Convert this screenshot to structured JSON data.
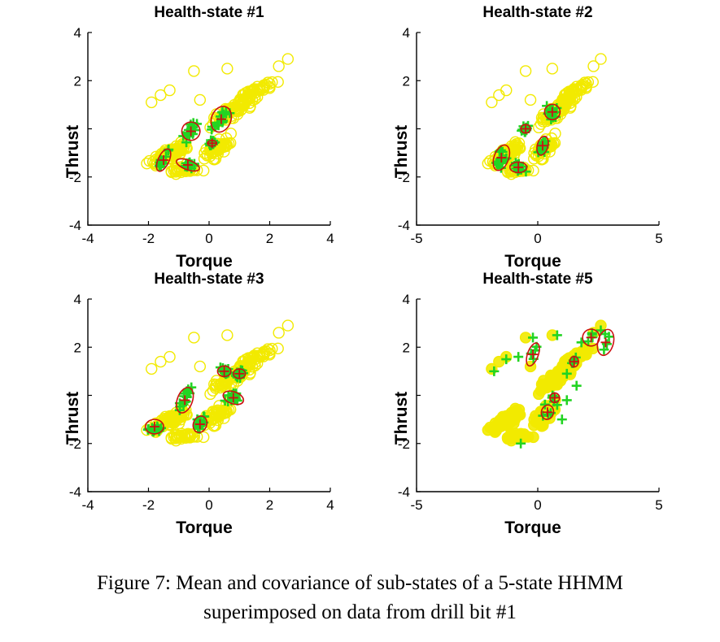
{
  "figure": {
    "caption_line1": "Figure 7: Mean and covariance of sub-states of a 5-state HHMM",
    "caption_line2": "superimposed on data from drill bit #1"
  },
  "colors": {
    "data": "#f2ea00",
    "substate_points": "#22d422",
    "ellipse": "#cc1111",
    "axis": "#000000"
  },
  "chart_data": [
    {
      "type": "scatter",
      "title": "Health-state #1",
      "xlabel": "Torque",
      "ylabel": "Thrust",
      "xlim": [
        -4,
        4
      ],
      "ylim": [
        -4,
        4
      ],
      "xticks": [
        -4,
        -2,
        0,
        2,
        4
      ],
      "yticks": [
        -4,
        -2,
        0,
        2,
        4
      ],
      "yticklabels": [
        "-4",
        "-2",
        "",
        "2",
        "4"
      ],
      "grid": false,
      "ellipses": [
        {
          "cx": -1.5,
          "cy": -1.3,
          "rx": 0.18,
          "ry": 0.5,
          "angle": 25
        },
        {
          "cx": -0.6,
          "cy": -0.1,
          "rx": 0.3,
          "ry": 0.38,
          "angle": 20
        },
        {
          "cx": -0.7,
          "cy": -1.5,
          "rx": 0.4,
          "ry": 0.2,
          "angle": 20
        },
        {
          "cx": 0.1,
          "cy": -0.6,
          "rx": 0.15,
          "ry": 0.12,
          "angle": 0
        },
        {
          "cx": 0.4,
          "cy": 0.4,
          "rx": 0.32,
          "ry": 0.55,
          "angle": 20
        }
      ]
    },
    {
      "type": "scatter",
      "title": "Health-state #2",
      "xlabel": "Torque",
      "ylabel": "Thrust",
      "xlim": [
        -5,
        5
      ],
      "ylim": [
        -4,
        4
      ],
      "xticks": [
        -5,
        0,
        5
      ],
      "yticks": [
        -4,
        -2,
        0,
        2,
        4
      ],
      "yticklabels": [
        "-4",
        "-2",
        "",
        "2",
        "4"
      ],
      "grid": false,
      "ellipses": [
        {
          "cx": -1.5,
          "cy": -1.2,
          "rx": 0.3,
          "ry": 0.55,
          "angle": 20
        },
        {
          "cx": -0.8,
          "cy": -1.6,
          "rx": 0.35,
          "ry": 0.22,
          "angle": 0
        },
        {
          "cx": -0.5,
          "cy": 0.0,
          "rx": 0.2,
          "ry": 0.18,
          "angle": 0
        },
        {
          "cx": 0.2,
          "cy": -0.7,
          "rx": 0.22,
          "ry": 0.4,
          "angle": 15
        },
        {
          "cx": 0.6,
          "cy": 0.7,
          "rx": 0.32,
          "ry": 0.32,
          "angle": 0
        }
      ]
    },
    {
      "type": "scatter",
      "title": "Health-state #3",
      "xlabel": "Torque",
      "ylabel": "Thrust",
      "xlim": [
        -4,
        4
      ],
      "ylim": [
        -4,
        4
      ],
      "xticks": [
        -4,
        -2,
        0,
        2,
        4
      ],
      "yticks": [
        -4,
        -2,
        0,
        2,
        4
      ],
      "yticklabels": [
        "-4",
        "-2",
        "",
        "2",
        "4"
      ],
      "grid": false,
      "ellipses": [
        {
          "cx": -1.8,
          "cy": -1.3,
          "rx": 0.3,
          "ry": 0.3,
          "angle": 0
        },
        {
          "cx": -0.8,
          "cy": -0.2,
          "rx": 0.25,
          "ry": 0.55,
          "angle": 20
        },
        {
          "cx": -0.3,
          "cy": -1.2,
          "rx": 0.22,
          "ry": 0.35,
          "angle": 20
        },
        {
          "cx": 0.5,
          "cy": 1.0,
          "rx": 0.22,
          "ry": 0.22,
          "angle": 0
        },
        {
          "cx": 0.8,
          "cy": -0.1,
          "rx": 0.35,
          "ry": 0.25,
          "angle": 20
        },
        {
          "cx": 1.0,
          "cy": 0.9,
          "rx": 0.2,
          "ry": 0.2,
          "angle": 0
        }
      ]
    },
    {
      "type": "scatter",
      "title": "Health-state #5",
      "xlabel": "Torque",
      "ylabel": "Thrust",
      "xlim": [
        -5,
        5
      ],
      "ylim": [
        -4,
        4
      ],
      "xticks": [
        -5,
        0,
        5
      ],
      "yticks": [
        -4,
        -2,
        0,
        2,
        4
      ],
      "yticklabels": [
        "-4",
        "-2",
        "",
        "2",
        "4"
      ],
      "grid": false,
      "ellipses": [
        {
          "cx": -0.2,
          "cy": 1.7,
          "rx": 0.22,
          "ry": 0.5,
          "angle": 20
        },
        {
          "cx": 1.5,
          "cy": 1.4,
          "rx": 0.18,
          "ry": 0.22,
          "angle": 0
        },
        {
          "cx": 0.7,
          "cy": -0.1,
          "rx": 0.2,
          "ry": 0.2,
          "angle": 0
        },
        {
          "cx": 0.4,
          "cy": -0.7,
          "rx": 0.25,
          "ry": 0.3,
          "angle": 15
        },
        {
          "cx": 2.2,
          "cy": 2.4,
          "rx": 0.35,
          "ry": 0.35,
          "angle": 0
        },
        {
          "cx": 2.8,
          "cy": 2.2,
          "rx": 0.32,
          "ry": 0.55,
          "angle": 15
        }
      ]
    }
  ]
}
